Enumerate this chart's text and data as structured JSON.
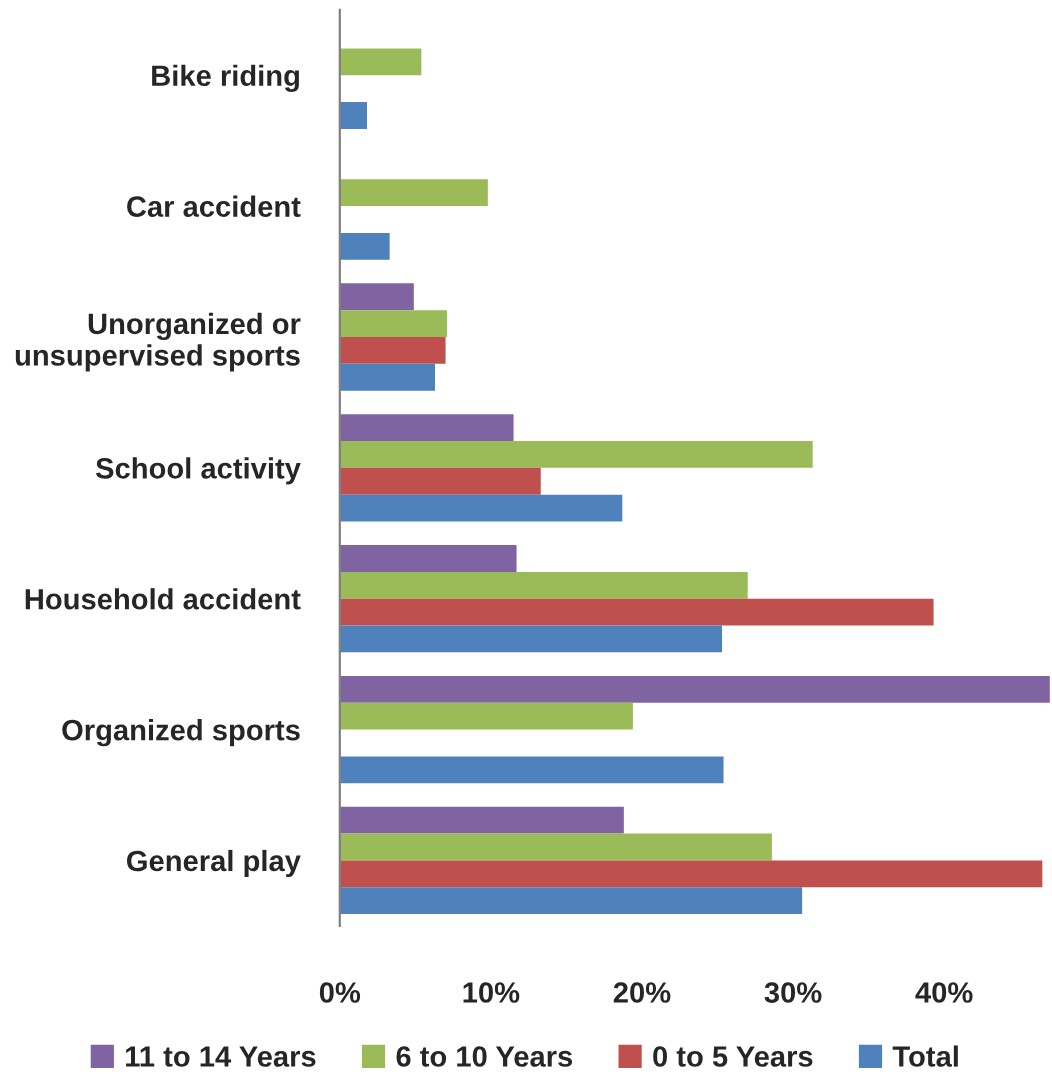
{
  "chart_data": {
    "type": "bar",
    "orientation": "horizontal",
    "categories": [
      "Bike riding",
      "Car accident",
      "Unorganized or\nunsupervised sports",
      "School activity",
      "Household accident",
      "Organized sports",
      "General play"
    ],
    "series": [
      {
        "name": "11 to 14 Years",
        "color": "#8064a2",
        "values": [
          null,
          null,
          4.9,
          11.5,
          11.7,
          47,
          18.8
        ]
      },
      {
        "name": "6 to 10 Years",
        "color": "#9bbb59",
        "values": [
          5.4,
          9.8,
          7.1,
          31.3,
          27.0,
          19.4,
          28.6
        ]
      },
      {
        "name": "0 to 5 Years",
        "color": "#c0504d",
        "values": [
          null,
          null,
          7.0,
          13.3,
          39.3,
          null,
          46.5
        ]
      },
      {
        "name": "Total",
        "color": "#4f81bd",
        "values": [
          1.8,
          3.3,
          6.3,
          18.7,
          25.3,
          25.4,
          30.6
        ]
      }
    ],
    "xlim": [
      0,
      47
    ],
    "xticks": [
      {
        "value": 0,
        "label": "0%"
      },
      {
        "value": 10,
        "label": "10%"
      },
      {
        "value": 20,
        "label": "20%"
      },
      {
        "value": 30,
        "label": "30%"
      },
      {
        "value": 40,
        "label": "40%"
      }
    ],
    "grid": false,
    "legend": "bottom"
  }
}
